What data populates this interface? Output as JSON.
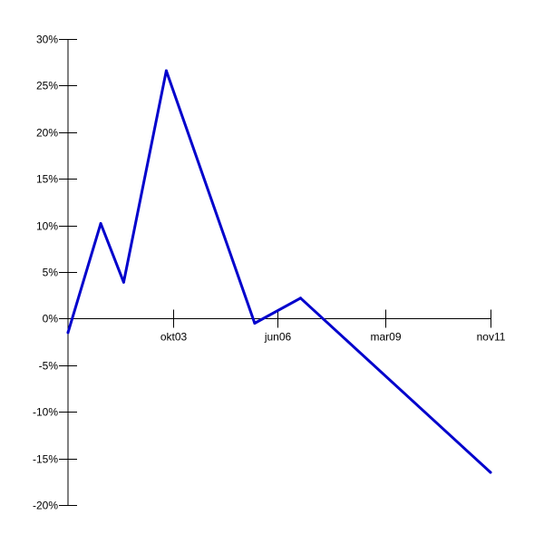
{
  "chart_data": {
    "type": "line",
    "title": "",
    "xlabel": "",
    "ylabel": "",
    "ylim": [
      -20,
      30
    ],
    "y_ticks": [
      30,
      25,
      20,
      15,
      10,
      5,
      0,
      -5,
      -10,
      -15,
      -20
    ],
    "y_tick_labels": [
      "30%",
      "25%",
      "20%",
      "15%",
      "10%",
      "5%",
      "0%",
      "-5%",
      "-10%",
      "-15%",
      "-20%"
    ],
    "x_ticks": [
      {
        "label": "okt03",
        "month_index": 45
      },
      {
        "label": "jun06",
        "month_index": 77
      },
      {
        "label": "mar09",
        "month_index": 110
      },
      {
        "label": "nov11",
        "month_index": 142
      }
    ],
    "xlim_month_index": [
      13,
      142
    ],
    "grid": false,
    "legend": "none",
    "series": [
      {
        "color": "#0000cc",
        "points": [
          {
            "month_index": 13,
            "value": -1.5
          },
          {
            "month_index": 23,
            "value": 10.2
          },
          {
            "month_index": 30,
            "value": 3.9
          },
          {
            "month_index": 43,
            "value": 26.6
          },
          {
            "month_index": 70,
            "value": -0.5
          },
          {
            "month_index": 84,
            "value": 2.2
          },
          {
            "month_index": 142,
            "value": -16.5
          }
        ]
      }
    ]
  }
}
